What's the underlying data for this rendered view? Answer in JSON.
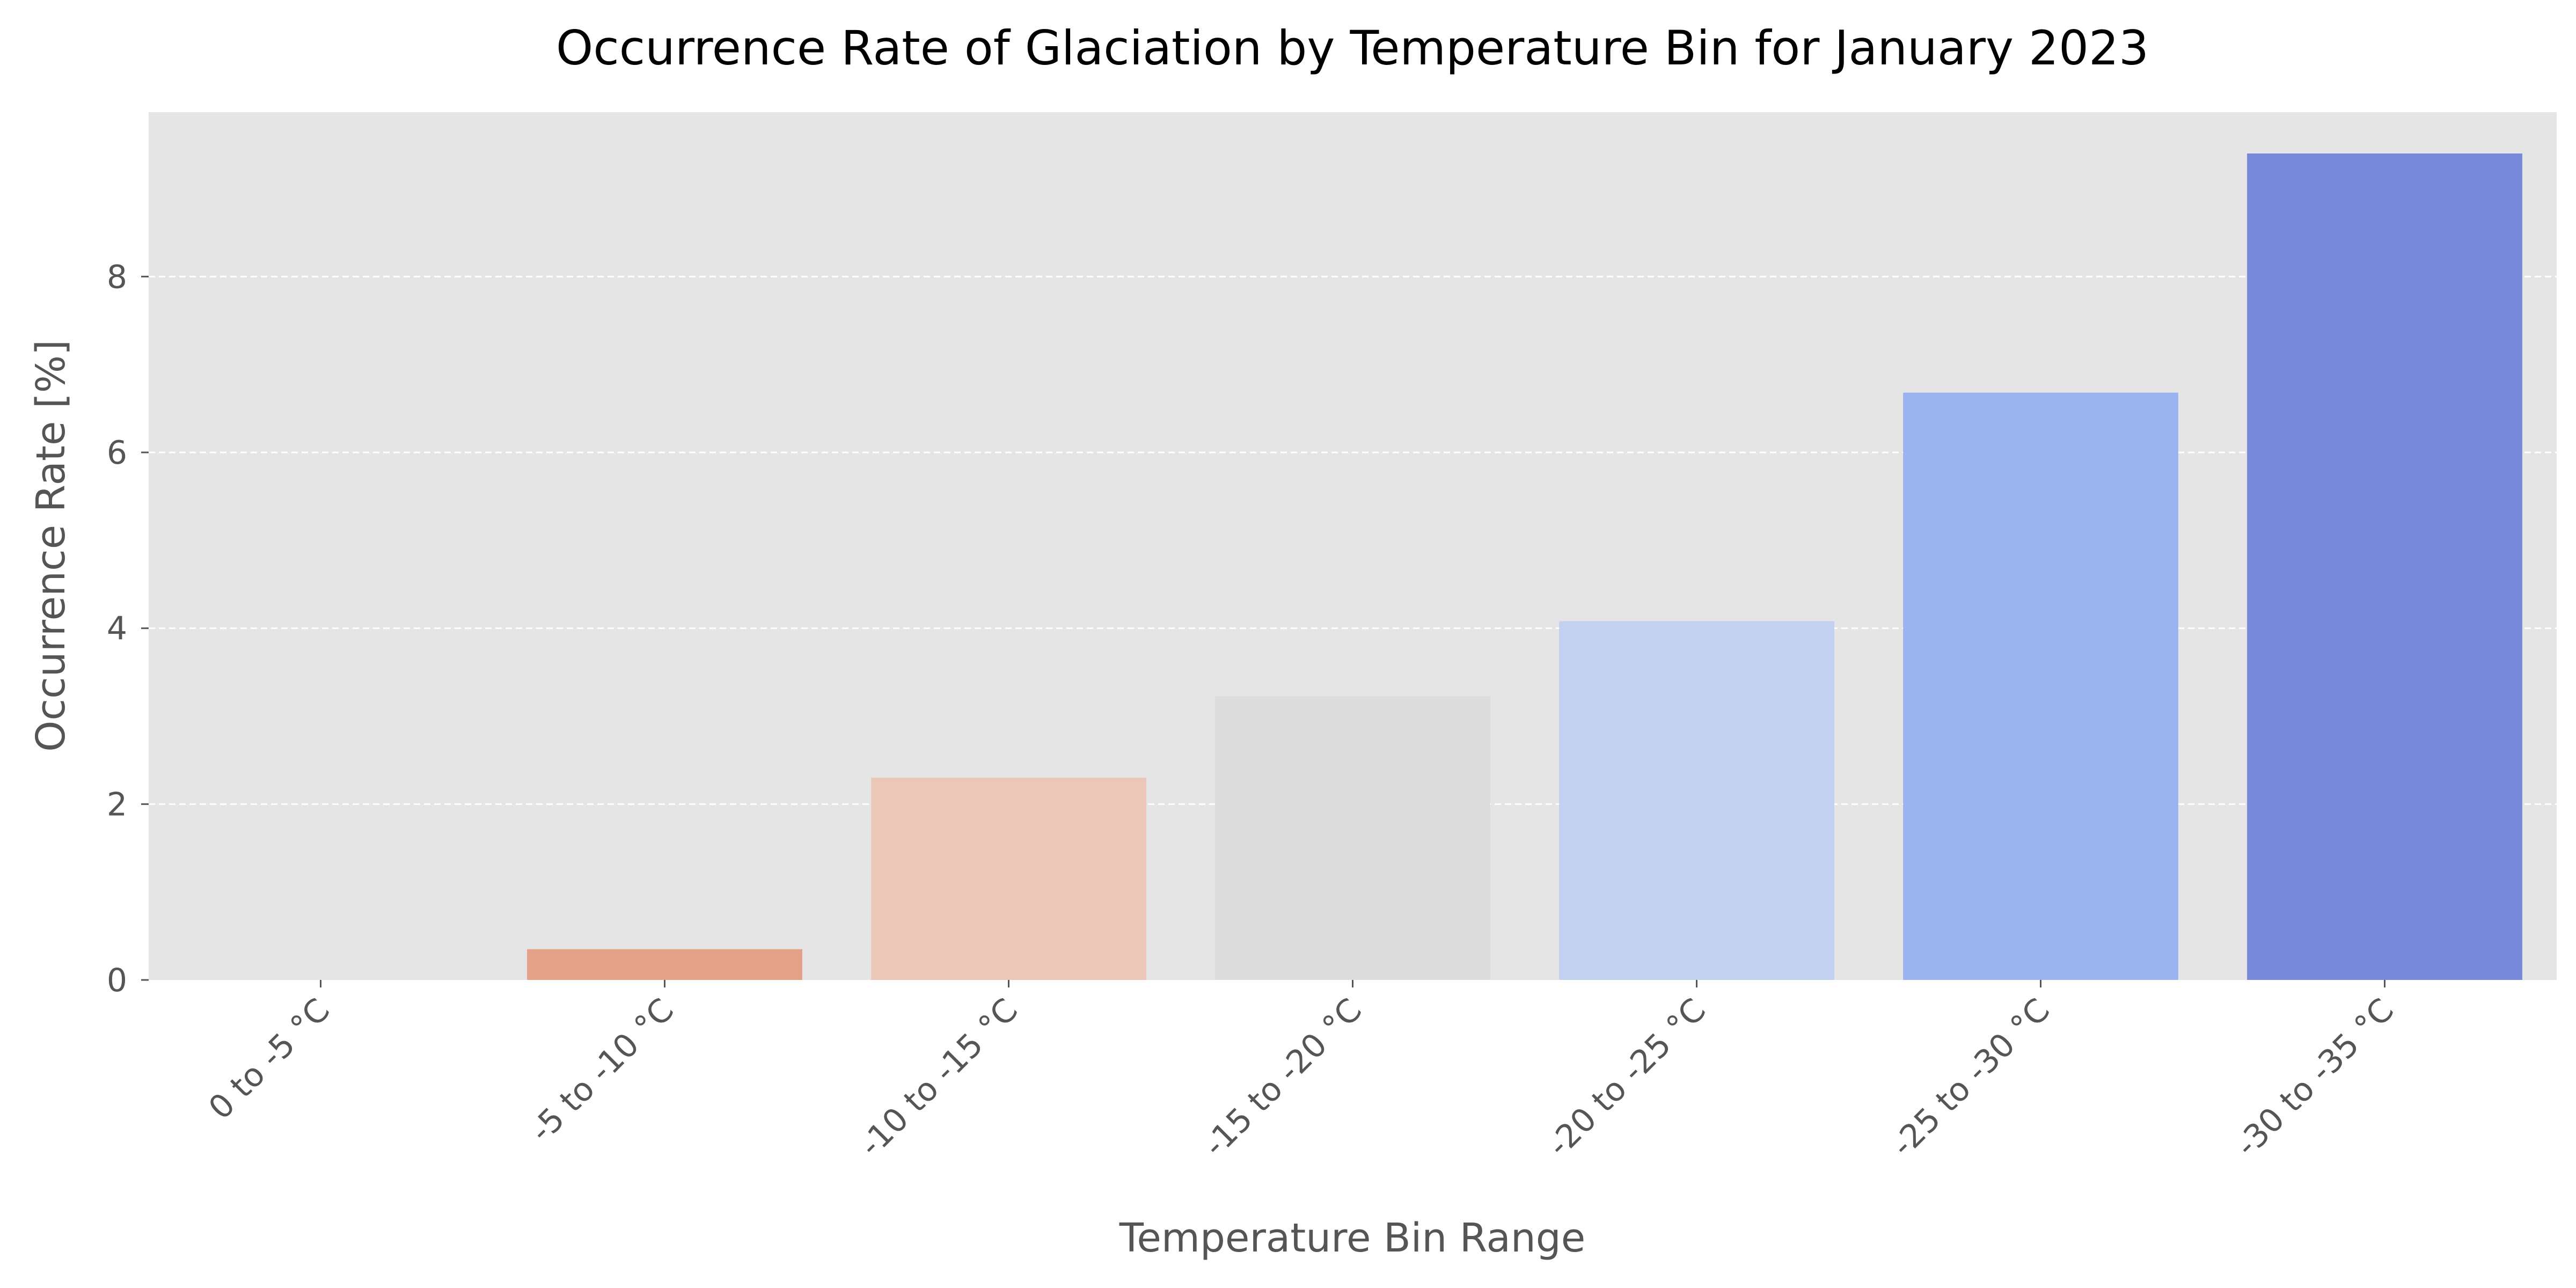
{
  "chart_data": {
    "type": "bar",
    "title": "Occurrence Rate of Glaciation by Temperature Bin for January 2023",
    "xlabel": "Temperature Bin Range",
    "ylabel": "Occurrence Rate [%]",
    "categories": [
      "0 to -5 °C",
      "-5 to -10 °C",
      "-10 to -15 °C",
      "-15 to -20 °C",
      "-20 to -25 °C",
      "-25 to -30 °C",
      "-30 to -35 °C"
    ],
    "values": [
      0.0,
      0.35,
      2.3,
      3.23,
      4.08,
      6.68,
      9.4
    ],
    "bar_colors": [
      "#f2b6a0",
      "#e5a187",
      "#eac7b6",
      "#dcdcdc",
      "#c1d1ef",
      "#9bb3ee",
      "#768ad9"
    ],
    "ylim": [
      0,
      9.87
    ],
    "yticks": [
      0,
      2,
      4,
      6,
      8
    ],
    "grid": true,
    "grid_axis": "y",
    "grid_style": "dashed",
    "background_color": "#e5e5e5"
  }
}
